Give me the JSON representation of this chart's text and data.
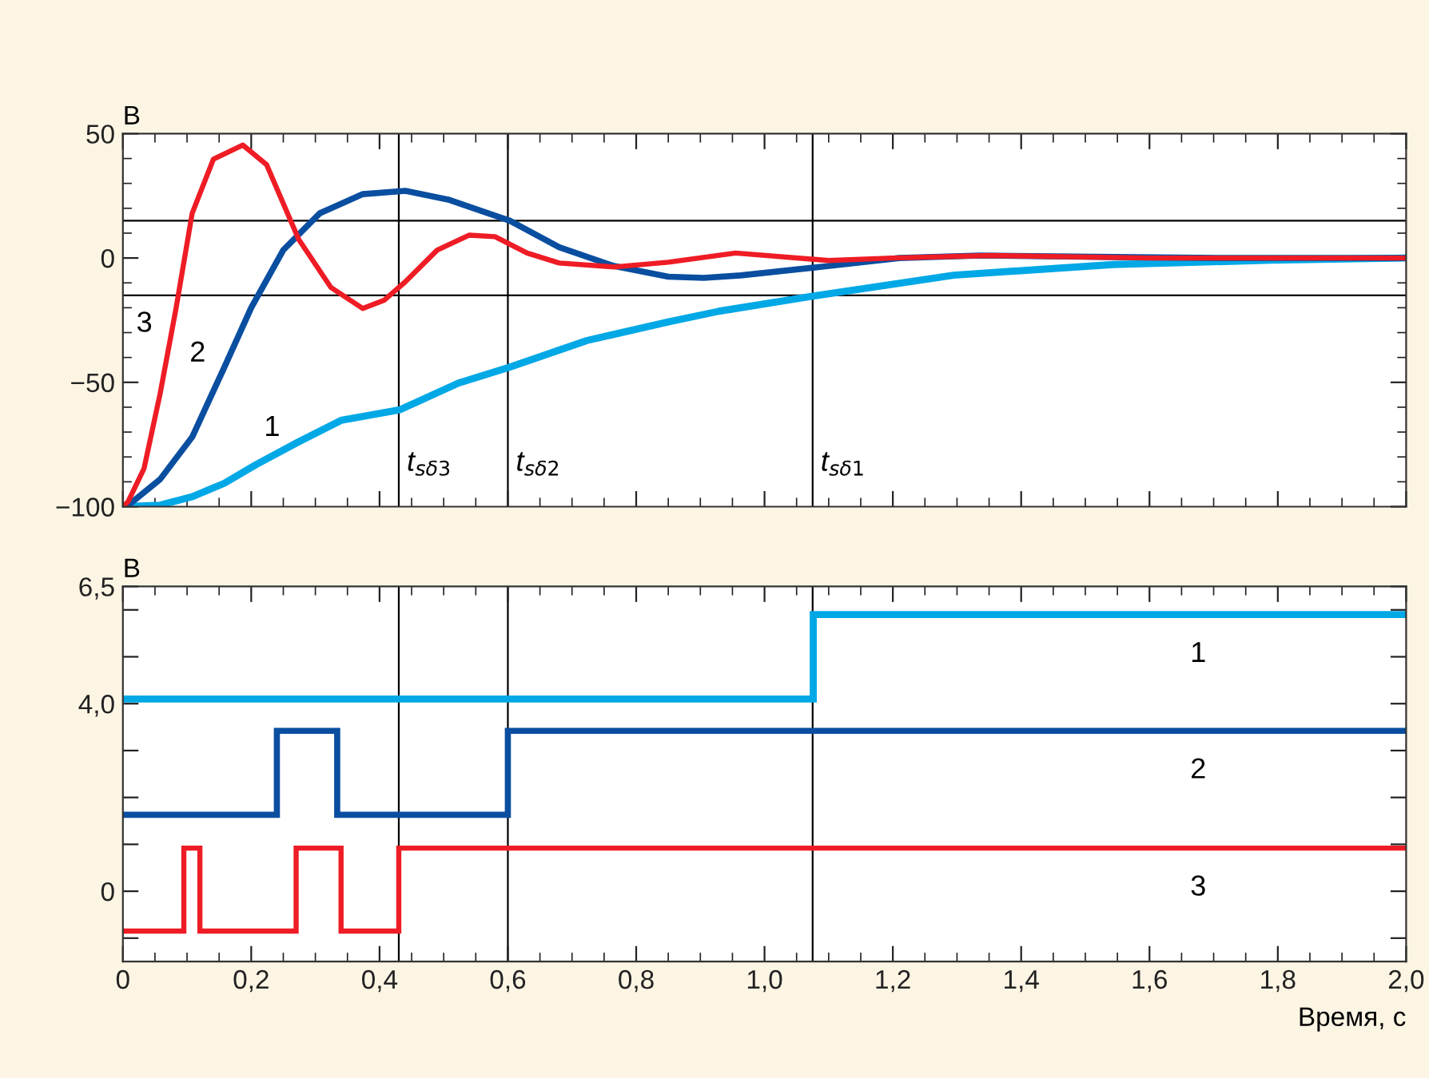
{
  "chart_data": [
    {
      "type": "line",
      "ylabel": "В",
      "xlim": [
        0,
        2.0
      ],
      "ylim": [
        -100,
        50
      ],
      "xticks": [
        {
          "value": 0,
          "label": null
        },
        {
          "value": 0.2,
          "label": null
        },
        {
          "value": 0.4,
          "label": null
        },
        {
          "value": 0.6,
          "label": null
        },
        {
          "value": 0.8,
          "label": null
        },
        {
          "value": 1.0,
          "label": null
        },
        {
          "value": 1.2,
          "label": null
        },
        {
          "value": 1.4,
          "label": null
        },
        {
          "value": 1.6,
          "label": null
        },
        {
          "value": 1.8,
          "label": null
        },
        {
          "value": 2.0,
          "label": null
        }
      ],
      "yticks": [
        {
          "value": -100,
          "label": "−100"
        },
        {
          "value": -50,
          "label": "−50"
        },
        0,
        50
      ],
      "tick_labels": "y",
      "grid": false,
      "legend": false,
      "series": [
        {
          "color": "#00a8e6",
          "x": [
            0,
            0.058,
            0.108,
            0.158,
            0.208,
            0.274,
            0.34,
            0.432,
            0.523,
            0.603,
            0.723,
            0.85,
            0.929,
            1.073,
            1.295,
            1.544,
            1.79,
            2.0
          ],
          "values": [
            -100,
            -99.4,
            -96,
            -90.6,
            -83,
            -73.9,
            -65.3,
            -61,
            -50.3,
            -43.9,
            -33.2,
            -25.7,
            -21.4,
            -15.4,
            -6.9,
            -2.6,
            -0.9,
            0
          ]
        },
        {
          "color": "#0a4ea0",
          "x": [
            0,
            0.008,
            0.058,
            0.108,
            0.158,
            0.2,
            0.25,
            0.307,
            0.374,
            0.44,
            0.507,
            0.603,
            0.68,
            0.765,
            0.85,
            0.905,
            0.963,
            1.087,
            1.21,
            1.336,
            1.546,
            1.71,
            2.0
          ],
          "values": [
            -100,
            -99.5,
            -89,
            -72,
            -44,
            -20,
            3.2,
            18,
            25.7,
            27,
            23.5,
            15,
            4.3,
            -3.2,
            -7.5,
            -8,
            -7,
            -3.6,
            0,
            1,
            0.4,
            0,
            0
          ]
        },
        {
          "color": "#ee1c25",
          "x": [
            0,
            0.008,
            0.033,
            0.058,
            0.083,
            0.108,
            0.141,
            0.187,
            0.224,
            0.274,
            0.324,
            0.374,
            0.407,
            0.44,
            0.49,
            0.54,
            0.58,
            0.63,
            0.68,
            0.765,
            0.85,
            0.955,
            1.1,
            1.2,
            1.35,
            1.6,
            2.0
          ],
          "values": [
            -100,
            -98,
            -84.6,
            -54.6,
            -20,
            18,
            39.7,
            45.4,
            37.5,
            7.5,
            -11.8,
            -20.3,
            -17,
            -9.6,
            3.2,
            9.2,
            8.6,
            2,
            -2,
            -3.6,
            -1.7,
            2,
            -1,
            0,
            1,
            0,
            0
          ]
        }
      ],
      "ref_lines": [
        {
          "axis": "y",
          "value": 15,
          "color": "#000000"
        },
        {
          "axis": "y",
          "value": -15,
          "color": "#000000"
        },
        {
          "axis": "x",
          "value": 0.43,
          "label": "t$_{sδ3}$",
          "color": "#000000"
        },
        {
          "axis": "x",
          "value": 0.6,
          "label": "t$_{sδ2}$",
          "color": "#000000"
        },
        {
          "axis": "x",
          "value": 1.075,
          "label": "t$_{sδ1}$",
          "color": "#000000"
        }
      ],
      "annotations": [
        {
          "text": "3",
          "x": 0.075,
          "y": -32
        },
        {
          "text": "2",
          "x": 0.158,
          "y": -44
        },
        {
          "text": "1",
          "x": 0.274,
          "y": -73.9
        }
      ]
    },
    {
      "type": "step",
      "ylabel": "В",
      "xlabel": "Время, с",
      "xlim": [
        0,
        2.0
      ],
      "ylim": [
        -1.5,
        6.5
      ],
      "xticks": [
        {
          "value": 0,
          "label": "0"
        },
        {
          "value": 0.2,
          "label": "0,2"
        },
        {
          "value": 0.4,
          "label": "0,4"
        },
        {
          "value": 0.6,
          "label": "0,6"
        },
        {
          "value": 0.8,
          "label": "0,8"
        },
        {
          "value": 1.0,
          "label": "1,0"
        },
        {
          "value": 1.2,
          "label": "1,2"
        },
        {
          "value": 1.4,
          "label": "1,4"
        },
        {
          "value": 1.6,
          "label": "1,6"
        },
        {
          "value": 1.8,
          "label": "1,8"
        },
        {
          "value": 2.0,
          "label": "2,0"
        }
      ],
      "yticks": [
        {
          "value": -1,
          "label": null
        },
        0,
        {
          "value": 1,
          "label": null
        },
        {
          "value": 2,
          "label": null
        },
        {
          "value": 3,
          "label": null
        },
        {
          "value": 4,
          "label": "4,0"
        },
        {
          "value": 5,
          "label": null
        },
        {
          "value": 6,
          "label": null
        },
        {
          "value": 6.5,
          "label": "6,5"
        }
      ],
      "grid": false,
      "legend": false,
      "series": [
        {
          "color": "#00a8e6",
          "x": [
            0,
            1.076,
            2.0
          ],
          "values": [
            4.1,
            5.9,
            5.9
          ]
        },
        {
          "color": "#0a4ea0",
          "x": [
            0,
            0.24,
            0.334,
            0.6,
            2.0
          ],
          "values": [
            1.63,
            3.42,
            1.63,
            3.42,
            3.42
          ]
        },
        {
          "color": "#ee1c25",
          "x": [
            0,
            0.095,
            0.12,
            0.27,
            0.34,
            0.43,
            2.0
          ],
          "values": [
            -0.85,
            0.92,
            -0.85,
            0.92,
            -0.85,
            0.92,
            0.92
          ]
        }
      ],
      "ref_lines": [
        {
          "axis": "x",
          "value": 0.43,
          "color": "#000000"
        },
        {
          "axis": "x",
          "value": 0.6,
          "color": "#000000"
        },
        {
          "axis": "x",
          "value": 1.075,
          "color": "#000000"
        }
      ],
      "annotations": [
        {
          "text": "1",
          "x": 1.676,
          "y": 5.9
        },
        {
          "text": "2",
          "x": 1.676,
          "y": 3.42
        },
        {
          "text": "3",
          "x": 1.676,
          "y": 0.92
        }
      ]
    }
  ]
}
